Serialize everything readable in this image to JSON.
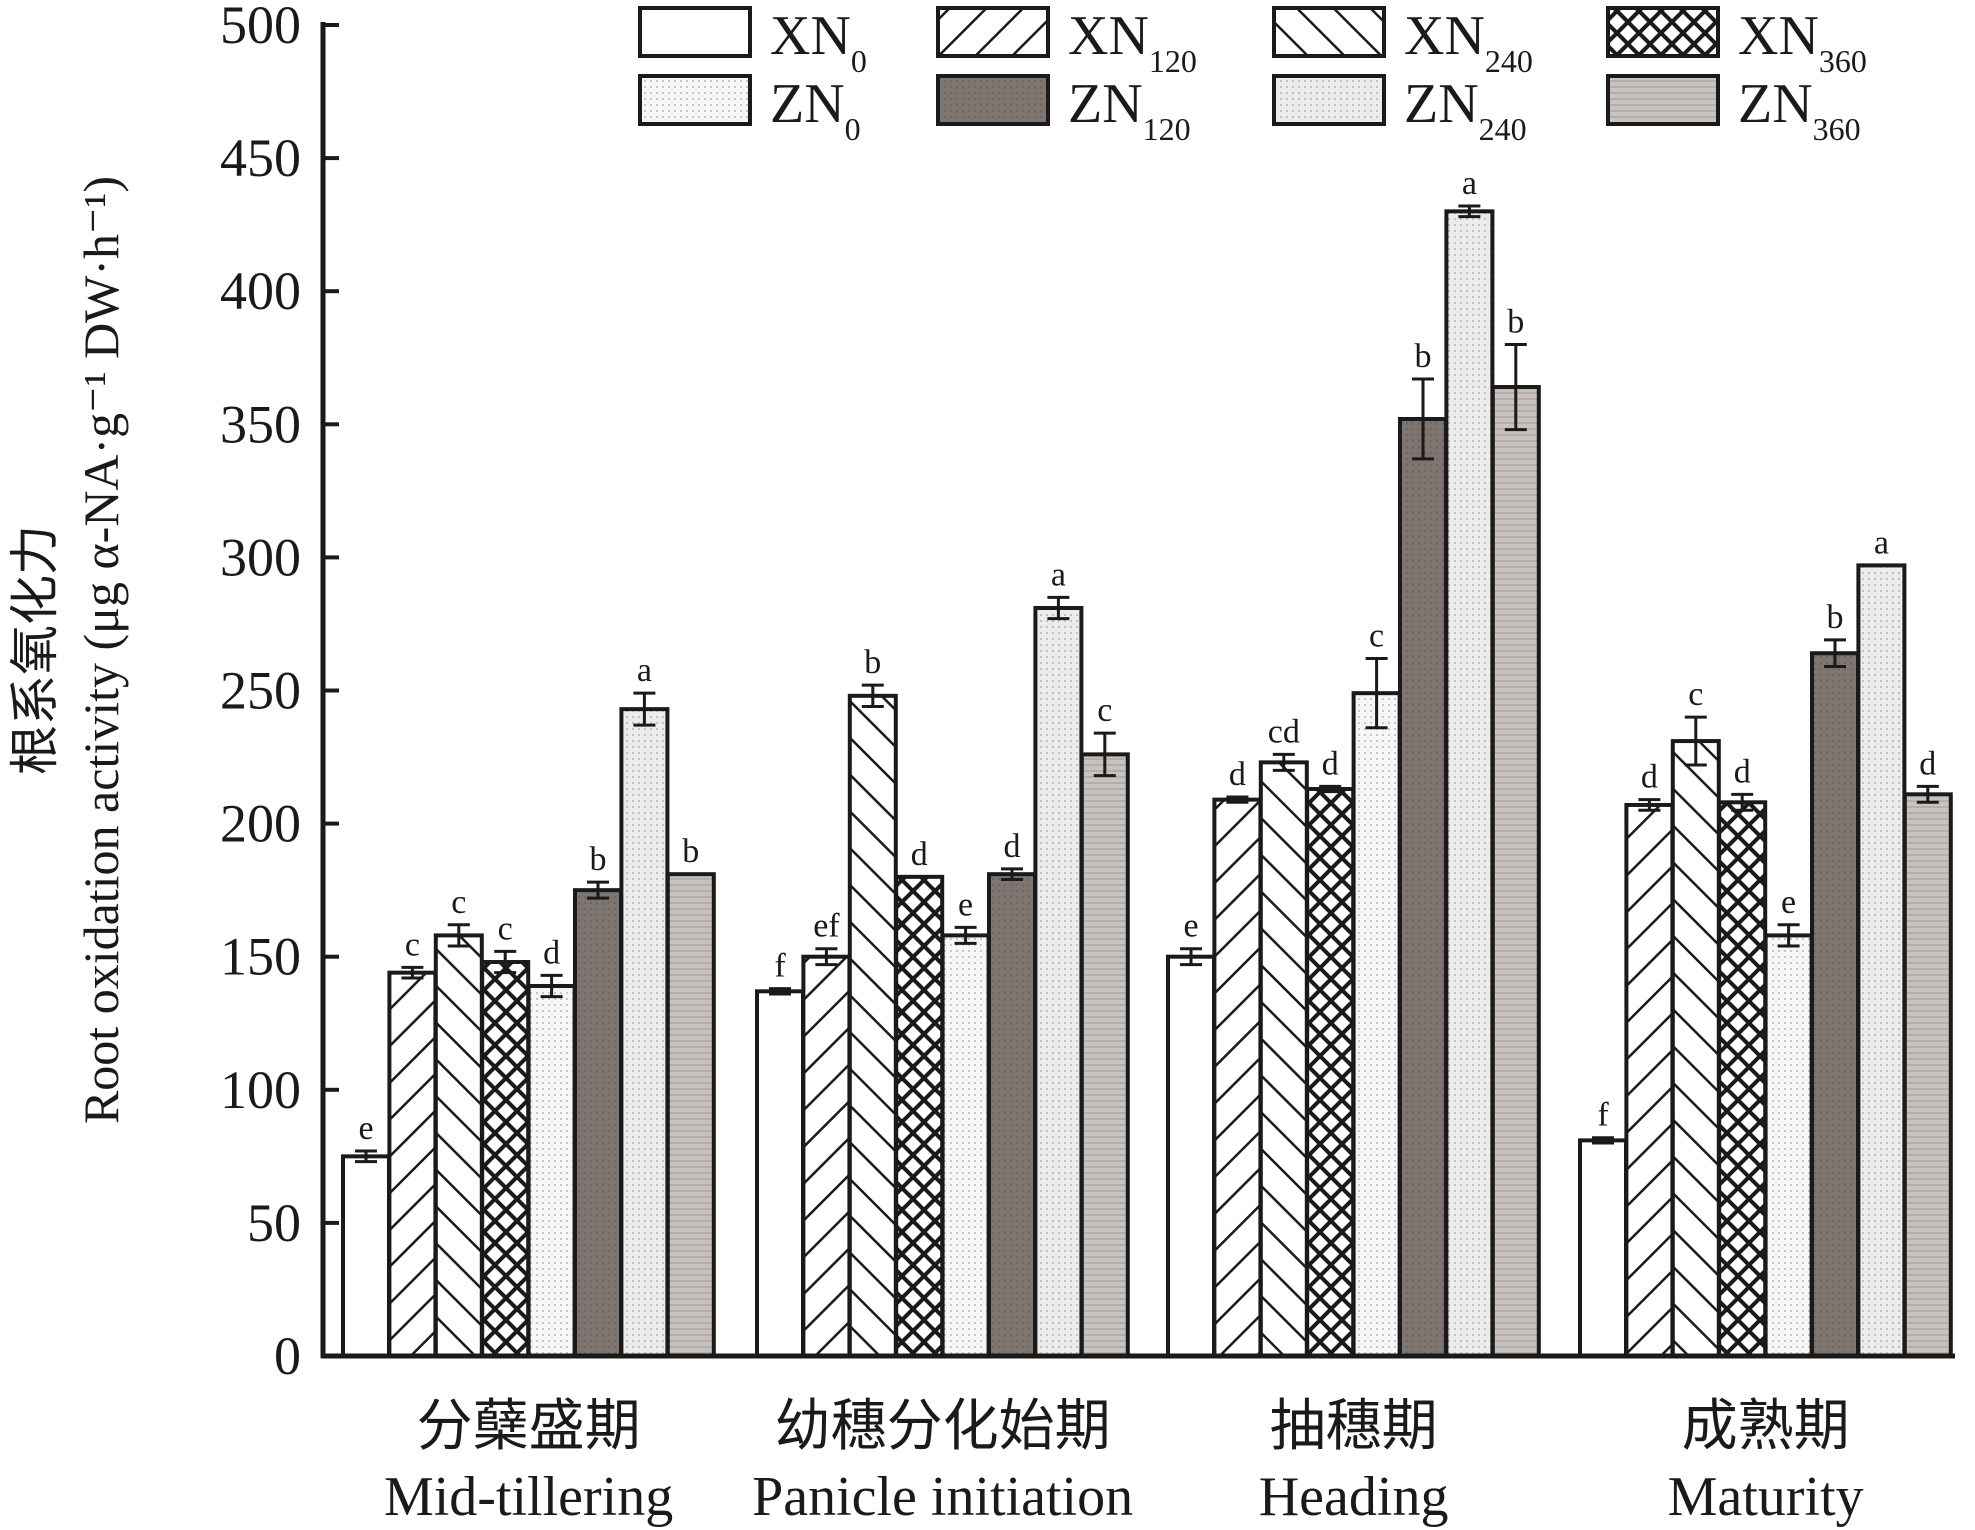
{
  "chart_data": {
    "type": "bar",
    "title": "",
    "ylabel_zh": "根系氧化力",
    "ylabel_en": "Root oxidation activity (μg α-NA·g⁻¹ DW·h⁻¹)",
    "ylim": [
      0,
      500
    ],
    "yticks": [
      0,
      50,
      100,
      150,
      200,
      250,
      300,
      350,
      400,
      450,
      500
    ],
    "categories": [
      {
        "zh": "分蘖盛期",
        "en": "Mid-tillering"
      },
      {
        "zh": "幼穗分化始期",
        "en": "Panicle initiation"
      },
      {
        "zh": "抽穗期",
        "en": "Heading"
      },
      {
        "zh": "成熟期",
        "en": "Maturity"
      }
    ],
    "series": [
      {
        "name": "XN0",
        "prefix": "XN",
        "sub": "0",
        "pattern": "white",
        "values": [
          75,
          137,
          150,
          81
        ],
        "errors": [
          2,
          1,
          3,
          1
        ],
        "letters": [
          "e",
          "f",
          "e",
          "f"
        ]
      },
      {
        "name": "XN120",
        "prefix": "XN",
        "sub": "120",
        "pattern": "fwd-hatch",
        "values": [
          144,
          150,
          209,
          207
        ],
        "errors": [
          2,
          3,
          1,
          2
        ],
        "letters": [
          "c",
          "ef",
          "d",
          "d"
        ]
      },
      {
        "name": "XN240",
        "prefix": "XN",
        "sub": "240",
        "pattern": "back-hatch",
        "values": [
          158,
          248,
          223,
          231
        ],
        "errors": [
          4,
          4,
          3,
          9
        ],
        "letters": [
          "c",
          "b",
          "cd",
          "c"
        ]
      },
      {
        "name": "XN360",
        "prefix": "XN",
        "sub": "360",
        "pattern": "cross-hatch",
        "values": [
          148,
          180,
          213,
          208
        ],
        "errors": [
          4,
          0,
          1,
          3
        ],
        "letters": [
          "c",
          "d",
          "d",
          "d"
        ]
      },
      {
        "name": "ZN0",
        "prefix": "ZN",
        "sub": "0",
        "pattern": "light-dot",
        "values": [
          139,
          158,
          249,
          158
        ],
        "errors": [
          4,
          3,
          13,
          4
        ],
        "letters": [
          "d",
          "e",
          "c",
          "e"
        ]
      },
      {
        "name": "ZN120",
        "prefix": "ZN",
        "sub": "120",
        "pattern": "dark",
        "values": [
          175,
          181,
          352,
          264
        ],
        "errors": [
          3,
          2,
          15,
          5
        ],
        "letters": [
          "b",
          "d",
          "b",
          "b"
        ]
      },
      {
        "name": "ZN240",
        "prefix": "ZN",
        "sub": "240",
        "pattern": "light-grey",
        "values": [
          243,
          281,
          430,
          297
        ],
        "errors": [
          6,
          4,
          2,
          0
        ],
        "letters": [
          "a",
          "a",
          "a",
          "a"
        ]
      },
      {
        "name": "ZN360",
        "prefix": "ZN",
        "sub": "360",
        "pattern": "mid-grey",
        "values": [
          181,
          226,
          364,
          211
        ],
        "errors": [
          0,
          8,
          16,
          3
        ],
        "letters": [
          "b",
          "c",
          "b",
          "d"
        ]
      }
    ],
    "legend": "top-right, 2 rows x 4 columns",
    "grid": false
  }
}
